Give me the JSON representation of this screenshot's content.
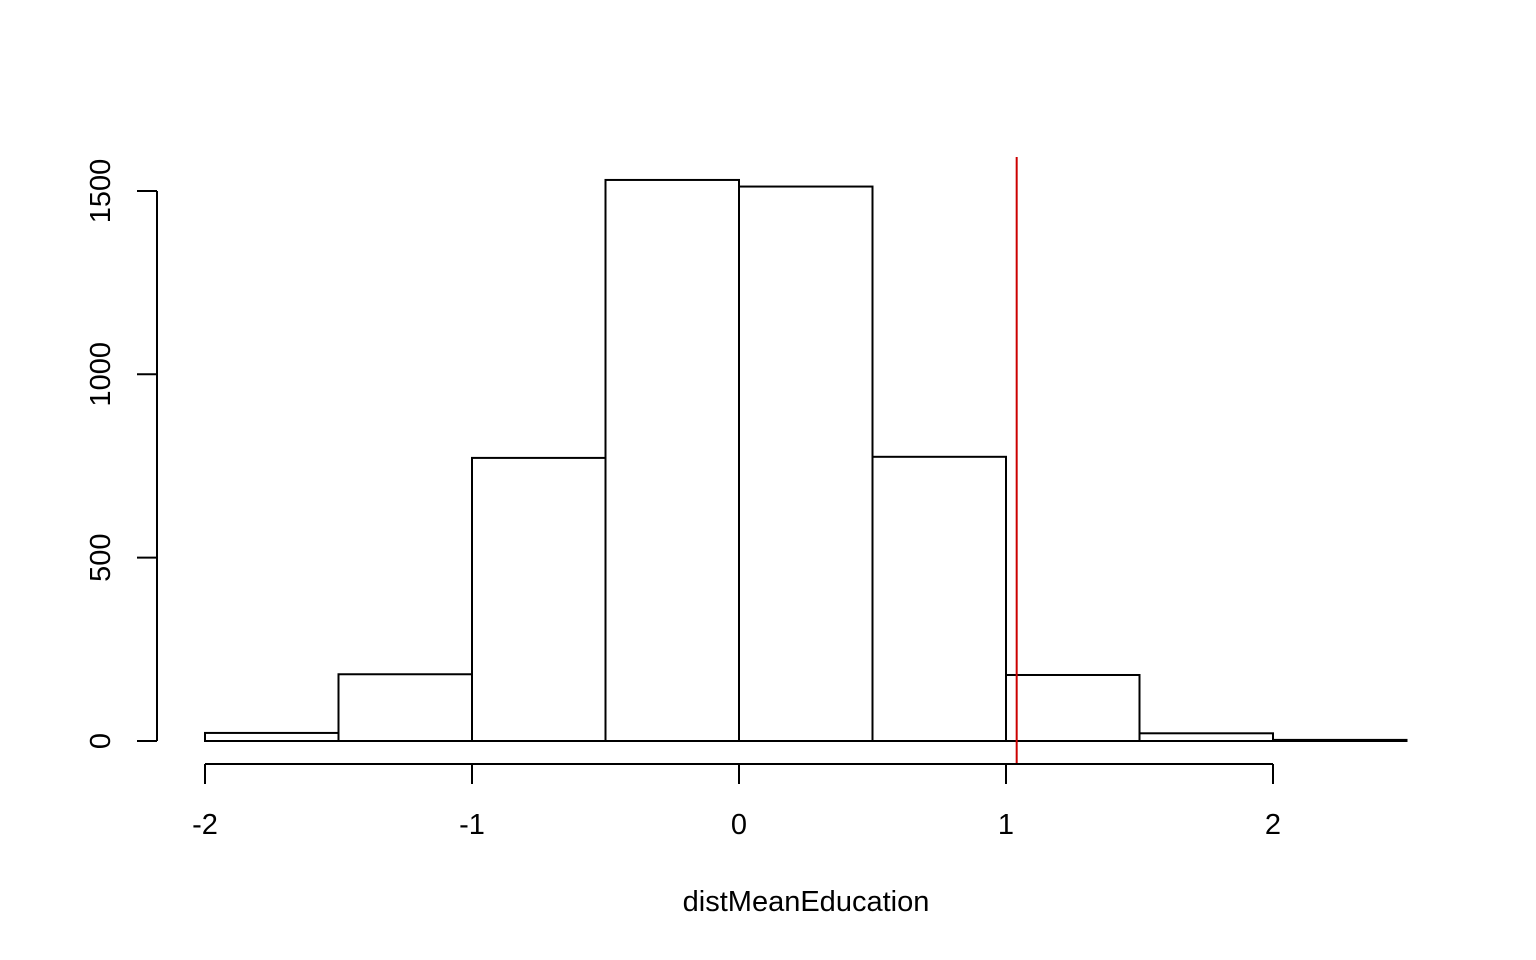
{
  "chart_data": {
    "type": "bar",
    "subtype": "histogram",
    "title": "",
    "xlabel": "distMeanEducation",
    "ylabel": "",
    "xlim": [
      -2,
      2.5
    ],
    "ylim": [
      0,
      1600
    ],
    "x_ticks": [
      -2,
      -1,
      0,
      1,
      2
    ],
    "x_tick_labels": [
      "-2",
      "-1",
      "0",
      "1",
      "2"
    ],
    "y_ticks": [
      0,
      500,
      1000,
      1500
    ],
    "y_tick_labels": [
      "0",
      "500",
      "1000",
      "1500"
    ],
    "bins": [
      {
        "x0": -2.0,
        "x1": -1.5,
        "count": 22
      },
      {
        "x0": -1.5,
        "x1": -1.0,
        "count": 182
      },
      {
        "x0": -1.0,
        "x1": -0.5,
        "count": 772
      },
      {
        "x0": -0.5,
        "x1": 0.0,
        "count": 1530
      },
      {
        "x0": 0.0,
        "x1": 0.5,
        "count": 1512
      },
      {
        "x0": 0.5,
        "x1": 1.0,
        "count": 775
      },
      {
        "x0": 1.0,
        "x1": 1.5,
        "count": 180
      },
      {
        "x0": 1.5,
        "x1": 2.0,
        "count": 21
      },
      {
        "x0": 2.0,
        "x1": 2.5,
        "count": 3
      }
    ],
    "reference_line": {
      "x": 1.04,
      "color": "#cc0000"
    },
    "bar_fill": "#ffffff",
    "bar_stroke": "#000000",
    "grid": false,
    "legend": "none"
  }
}
